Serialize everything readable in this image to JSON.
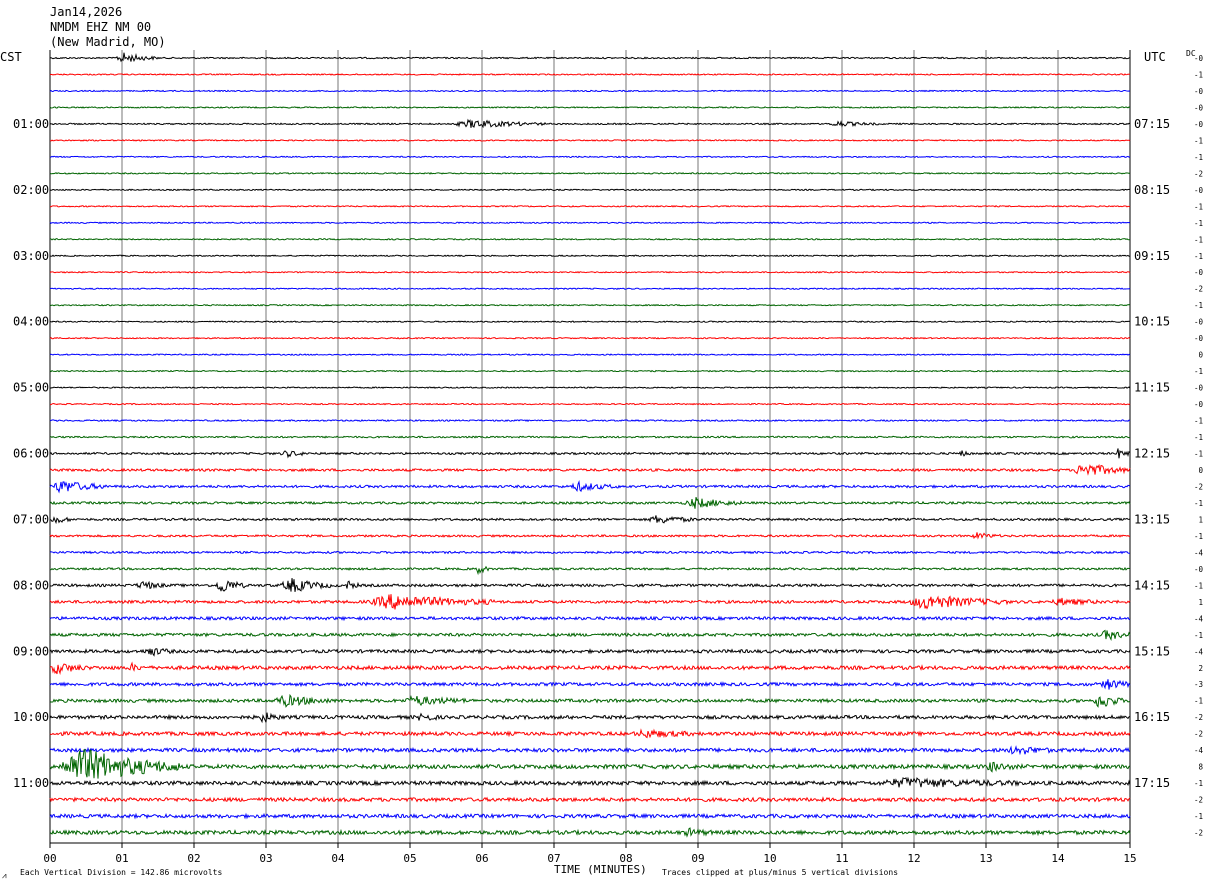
{
  "header": {
    "date": "Jan14,2026",
    "station": "NMDM EHZ NM 00",
    "location": "(New Madrid, MO)"
  },
  "left_timezone": "CST",
  "right_timezone": "UTC",
  "dc_label": "DC",
  "footer": {
    "scale_note": "Each Vertical Division =  142.86 microvolts",
    "xlabel": "TIME (MINUTES)",
    "clip_note": "Traces clipped at plus/minus 5 vertical divisions",
    "corner_mark": "⩘"
  },
  "chart_data": {
    "type": "line",
    "title": "",
    "xlabel": "TIME (MINUTES)",
    "x_ticks": [
      "00",
      "01",
      "02",
      "03",
      "04",
      "05",
      "06",
      "07",
      "08",
      "09",
      "10",
      "11",
      "12",
      "13",
      "14",
      "15"
    ],
    "xlim": [
      0,
      15
    ],
    "grid": true,
    "trace_minutes": 15,
    "trace_colors": [
      "#000000",
      "#ff0000",
      "#0000ff",
      "#006400"
    ],
    "left_hour_labels": [
      "01:00",
      "02:00",
      "03:00",
      "04:00",
      "05:00",
      "06:00",
      "07:00",
      "08:00",
      "09:00",
      "10:00",
      "11:00"
    ],
    "right_hour_labels": [
      "07:15",
      "08:15",
      "09:15",
      "10:15",
      "11:15",
      "12:15",
      "13:15",
      "14:15",
      "15:15",
      "16:15",
      "17:15"
    ],
    "trace_dc_offsets": [
      "-0",
      "-1",
      "-0",
      "-0",
      "-0",
      "-1",
      "-1",
      "-2",
      "-0",
      "-1",
      "-1",
      "-1",
      "-1",
      "-0",
      "-2",
      "-1",
      "-0",
      "-0",
      "0",
      "-1",
      "-0",
      "-0",
      "-1",
      "-1",
      "-1",
      "0",
      "-2",
      "-1",
      "1",
      "-1",
      "-4",
      "-0",
      "-1",
      "1",
      "-4",
      "-1",
      "-4",
      "2",
      "-3",
      "-1",
      "-2",
      "-2",
      "-4",
      "8",
      "-1",
      "-2",
      "-1",
      "-2"
    ],
    "trace_amplitude": [
      0.7,
      0.6,
      0.6,
      0.6,
      0.7,
      0.6,
      0.6,
      0.6,
      0.6,
      0.6,
      0.6,
      0.6,
      0.6,
      0.6,
      0.6,
      0.6,
      0.6,
      0.6,
      0.6,
      0.6,
      0.6,
      0.6,
      0.7,
      0.8,
      1.0,
      1.2,
      1.2,
      1.1,
      1.1,
      1.0,
      1.0,
      1.0,
      1.3,
      1.4,
      1.5,
      1.5,
      1.6,
      1.8,
      1.6,
      1.6,
      1.7,
      1.8,
      1.8,
      2.0,
      1.9,
      1.8,
      1.8,
      1.9
    ],
    "events": [
      {
        "trace": 0,
        "start_min": 0.9,
        "end_min": 1.5,
        "peak": 5
      },
      {
        "trace": 4,
        "start_min": 5.6,
        "end_min": 6.9,
        "peak": 4
      },
      {
        "trace": 4,
        "start_min": 10.8,
        "end_min": 11.5,
        "peak": 2.5
      },
      {
        "trace": 24,
        "start_min": 3.2,
        "end_min": 3.6,
        "peak": 3
      },
      {
        "trace": 24,
        "start_min": 12.6,
        "end_min": 12.8,
        "peak": 3
      },
      {
        "trace": 24,
        "start_min": 14.8,
        "end_min": 15.0,
        "peak": 5
      },
      {
        "trace": 25,
        "start_min": 14.2,
        "end_min": 15.0,
        "peak": 7
      },
      {
        "trace": 26,
        "start_min": 0.0,
        "end_min": 0.8,
        "peak": 6
      },
      {
        "trace": 26,
        "start_min": 7.2,
        "end_min": 7.9,
        "peak": 4
      },
      {
        "trace": 27,
        "start_min": 8.8,
        "end_min": 9.6,
        "peak": 5
      },
      {
        "trace": 28,
        "start_min": 0.0,
        "end_min": 0.3,
        "peak": 4
      },
      {
        "trace": 28,
        "start_min": 8.3,
        "end_min": 9.0,
        "peak": 4
      },
      {
        "trace": 29,
        "start_min": 12.8,
        "end_min": 13.2,
        "peak": 3
      },
      {
        "trace": 31,
        "start_min": 5.9,
        "end_min": 6.1,
        "peak": 5
      },
      {
        "trace": 32,
        "start_min": 1.2,
        "end_min": 1.6,
        "peak": 4
      },
      {
        "trace": 32,
        "start_min": 2.3,
        "end_min": 2.7,
        "peak": 8
      },
      {
        "trace": 32,
        "start_min": 3.2,
        "end_min": 3.9,
        "peak": 7
      },
      {
        "trace": 32,
        "start_min": 4.1,
        "end_min": 4.3,
        "peak": 4
      },
      {
        "trace": 33,
        "start_min": 4.4,
        "end_min": 6.2,
        "peak": 7
      },
      {
        "trace": 33,
        "start_min": 11.9,
        "end_min": 13.3,
        "peak": 7
      },
      {
        "trace": 33,
        "start_min": 13.9,
        "end_min": 14.6,
        "peak": 3
      },
      {
        "trace": 35,
        "start_min": 14.6,
        "end_min": 15.0,
        "peak": 5
      },
      {
        "trace": 36,
        "start_min": 1.3,
        "end_min": 1.7,
        "peak": 4
      },
      {
        "trace": 37,
        "start_min": 0.0,
        "end_min": 0.5,
        "peak": 5
      },
      {
        "trace": 37,
        "start_min": 1.1,
        "end_min": 1.3,
        "peak": 3
      },
      {
        "trace": 38,
        "start_min": 14.6,
        "end_min": 15.0,
        "peak": 5
      },
      {
        "trace": 39,
        "start_min": 3.1,
        "end_min": 3.9,
        "peak": 5
      },
      {
        "trace": 39,
        "start_min": 4.9,
        "end_min": 5.8,
        "peak": 4
      },
      {
        "trace": 39,
        "start_min": 14.5,
        "end_min": 14.9,
        "peak": 8
      },
      {
        "trace": 40,
        "start_min": 2.9,
        "end_min": 3.2,
        "peak": 5
      },
      {
        "trace": 40,
        "start_min": 5.1,
        "end_min": 5.4,
        "peak": 4
      },
      {
        "trace": 41,
        "start_min": 8.1,
        "end_min": 9.0,
        "peak": 3
      },
      {
        "trace": 42,
        "start_min": 13.3,
        "end_min": 13.9,
        "peak": 4
      },
      {
        "trace": 43,
        "start_min": 0.1,
        "end_min": 1.8,
        "peak": 18
      },
      {
        "trace": 43,
        "start_min": 13.0,
        "end_min": 13.4,
        "peak": 4
      },
      {
        "trace": 44,
        "start_min": 11.5,
        "end_min": 13.5,
        "peak": 4
      },
      {
        "trace": 47,
        "start_min": 8.8,
        "end_min": 9.2,
        "peak": 3
      }
    ]
  }
}
